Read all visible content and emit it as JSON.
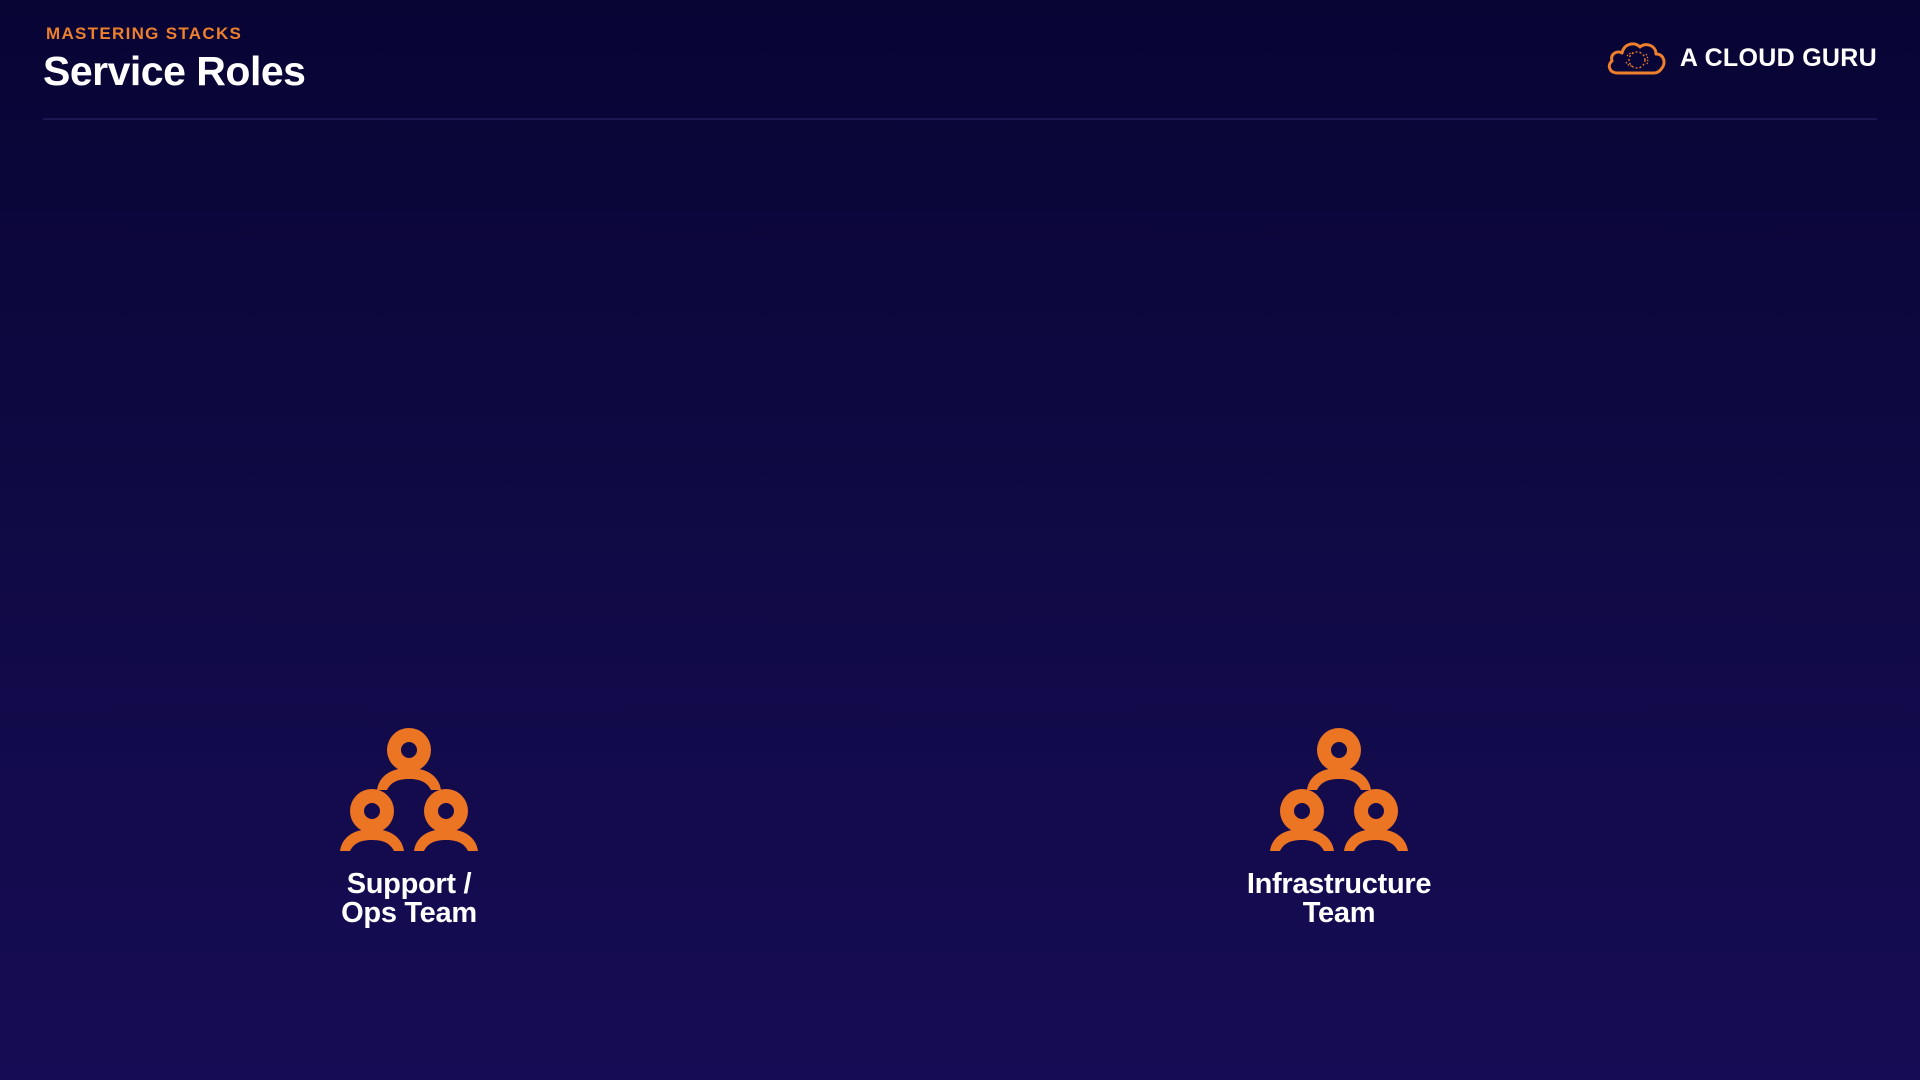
{
  "slide": {
    "eyebrow": "MASTERING STACKS",
    "title": "Service Roles"
  },
  "brand": {
    "name": "A CLOUD GURU",
    "logo_icon": "cloud-icon",
    "accent_color": "#ee7f2d"
  },
  "teams": [
    {
      "icon": "team-group-icon",
      "label_lines": [
        "Support /",
        "Ops Team"
      ]
    },
    {
      "icon": "team-group-icon",
      "label_lines": [
        "Infrastructure",
        "Team"
      ]
    }
  ],
  "colors": {
    "background_top": "#080434",
    "background_bottom": "#160c55",
    "accent": "#ee7f2d",
    "text": "#ffffff"
  }
}
